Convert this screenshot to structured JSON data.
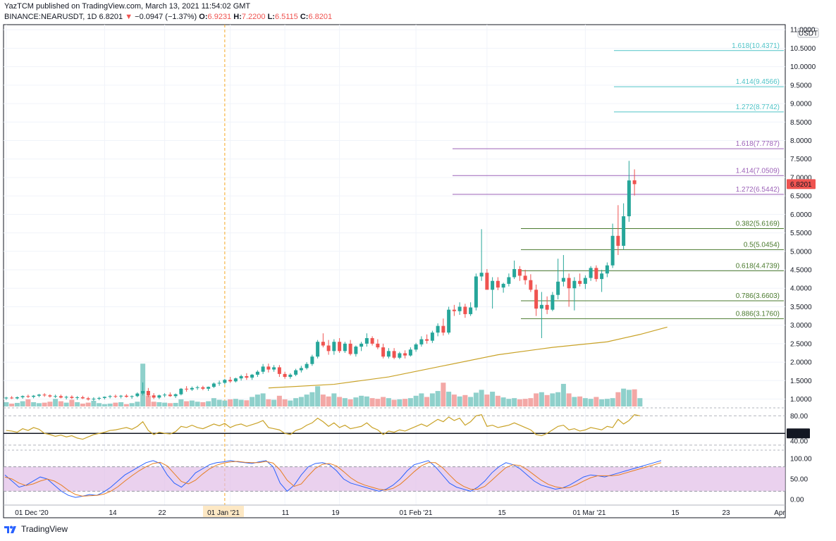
{
  "header": {
    "line1": "YazTCM published on TradingView.com, March 13, 2021 11:54:02 GMT",
    "symbol": "BINANCE:NEARUSDT, 1D",
    "price": "6.8201",
    "change": "−0.0947 (−1.37%)",
    "o_label": "O:",
    "o": "6.9231",
    "h_label": "H:",
    "h": "7.2200",
    "l_label": "L:",
    "l": "6.5115",
    "c_label": "C:",
    "c": "6.8201"
  },
  "footer": {
    "brand": "TradingView"
  },
  "colors": {
    "up": "#26a69a",
    "down": "#ef5350",
    "vol_up": "#8fd0cb",
    "vol_down": "#f3a8a6",
    "ma": "#c9a227",
    "fib_ext_cyan": "#4fc3c7",
    "fib_ext_purple": "#9c62b8",
    "fib_ret": "#4a7a2e",
    "rsi_line": "#c9a227",
    "stoch_k": "#2962ff",
    "stoch_d": "#e67e22",
    "stoch_band": "#e1bee7"
  },
  "chart_data": {
    "type": "candlestick",
    "currency": "USDT",
    "last_price_label": "6.8201",
    "y_axis_ticks": [
      "11.0000",
      "10.5000",
      "10.0000",
      "9.5000",
      "9.0000",
      "8.5000",
      "8.0000",
      "7.5000",
      "7.0000",
      "6.5000",
      "6.0000",
      "5.5000",
      "5.0000",
      "4.5000",
      "4.0000",
      "3.5000",
      "3.0000",
      "2.5000",
      "2.0000",
      "1.5000",
      "1.0000"
    ],
    "ylim": [
      0.8,
      11.1
    ],
    "x_axis_labels": [
      "01 Dec '20",
      "14",
      "22",
      "01 Jan '21",
      "11",
      "19",
      "01 Feb '21",
      "15",
      "01 Mar '21",
      "15",
      "23",
      "Apr"
    ],
    "x_axis_highlight": "01 Jan '21",
    "candles": [
      [
        1.02,
        1.06,
        0.98,
        1.04
      ],
      [
        1.04,
        1.08,
        1.0,
        1.02
      ],
      [
        1.02,
        1.07,
        0.99,
        1.05
      ],
      [
        1.05,
        1.1,
        1.01,
        1.08
      ],
      [
        1.08,
        1.12,
        1.03,
        1.06
      ],
      [
        1.06,
        1.11,
        1.02,
        1.09
      ],
      [
        1.09,
        1.14,
        1.05,
        1.12
      ],
      [
        1.12,
        1.16,
        1.06,
        1.1
      ],
      [
        1.1,
        1.13,
        1.04,
        1.07
      ],
      [
        1.07,
        1.12,
        1.03,
        1.08
      ],
      [
        1.08,
        1.12,
        1.02,
        1.04
      ],
      [
        1.04,
        1.09,
        0.99,
        1.06
      ],
      [
        1.06,
        1.1,
        1.0,
        1.03
      ],
      [
        1.03,
        1.08,
        0.98,
        1.05
      ],
      [
        1.05,
        1.09,
        1.0,
        1.02
      ],
      [
        1.02,
        1.06,
        0.96,
        0.99
      ],
      [
        0.99,
        1.05,
        0.95,
        1.01
      ],
      [
        1.01,
        1.06,
        0.97,
        1.03
      ],
      [
        1.03,
        1.07,
        0.99,
        1.06
      ],
      [
        1.06,
        1.11,
        1.02,
        1.08
      ],
      [
        1.08,
        1.12,
        1.03,
        1.07
      ],
      [
        1.07,
        1.11,
        1.02,
        1.09
      ],
      [
        1.09,
        1.13,
        1.04,
        1.06
      ],
      [
        1.06,
        1.1,
        1.01,
        1.08
      ],
      [
        1.08,
        1.18,
        1.05,
        1.15
      ],
      [
        1.15,
        1.45,
        1.1,
        1.22
      ],
      [
        1.22,
        1.3,
        1.05,
        1.1
      ],
      [
        1.1,
        1.16,
        1.0,
        1.04
      ],
      [
        1.04,
        1.12,
        1.0,
        1.1
      ],
      [
        1.1,
        1.16,
        1.05,
        1.12
      ],
      [
        1.12,
        1.18,
        1.06,
        1.08
      ],
      [
        1.08,
        1.15,
        1.03,
        1.13
      ],
      [
        1.13,
        1.3,
        1.1,
        1.28
      ],
      [
        1.28,
        1.35,
        1.2,
        1.26
      ],
      [
        1.26,
        1.34,
        1.22,
        1.3
      ],
      [
        1.3,
        1.36,
        1.25,
        1.32
      ],
      [
        1.32,
        1.36,
        1.24,
        1.28
      ],
      [
        1.28,
        1.34,
        1.22,
        1.33
      ],
      [
        1.33,
        1.45,
        1.3,
        1.42
      ],
      [
        1.42,
        1.5,
        1.36,
        1.44
      ],
      [
        1.44,
        1.55,
        1.4,
        1.52
      ],
      [
        1.52,
        1.6,
        1.44,
        1.48
      ],
      [
        1.48,
        1.58,
        1.45,
        1.56
      ],
      [
        1.56,
        1.66,
        1.5,
        1.62
      ],
      [
        1.62,
        1.7,
        1.52,
        1.58
      ],
      [
        1.58,
        1.68,
        1.52,
        1.66
      ],
      [
        1.66,
        1.78,
        1.6,
        1.74
      ],
      [
        1.74,
        1.95,
        1.68,
        1.88
      ],
      [
        1.88,
        1.96,
        1.72,
        1.8
      ],
      [
        1.8,
        1.92,
        1.74,
        1.86
      ],
      [
        1.86,
        1.92,
        1.6,
        1.68
      ],
      [
        1.68,
        1.74,
        1.55,
        1.6
      ],
      [
        1.6,
        1.7,
        1.55,
        1.66
      ],
      [
        1.66,
        1.82,
        1.62,
        1.78
      ],
      [
        1.78,
        1.9,
        1.72,
        1.84
      ],
      [
        1.84,
        2.0,
        1.8,
        1.95
      ],
      [
        1.95,
        2.2,
        1.9,
        2.15
      ],
      [
        2.15,
        2.6,
        2.1,
        2.55
      ],
      [
        2.55,
        2.78,
        2.4,
        2.45
      ],
      [
        2.45,
        2.6,
        2.2,
        2.3
      ],
      [
        2.3,
        2.62,
        2.2,
        2.55
      ],
      [
        2.55,
        2.65,
        2.25,
        2.3
      ],
      [
        2.3,
        2.55,
        2.25,
        2.5
      ],
      [
        2.5,
        2.6,
        2.18,
        2.22
      ],
      [
        2.22,
        2.45,
        2.15,
        2.42
      ],
      [
        2.42,
        2.55,
        2.3,
        2.5
      ],
      [
        2.5,
        2.78,
        2.42,
        2.65
      ],
      [
        2.65,
        2.7,
        2.45,
        2.5
      ],
      [
        2.5,
        2.62,
        2.35,
        2.4
      ],
      [
        2.4,
        2.5,
        2.1,
        2.15
      ],
      [
        2.15,
        2.38,
        2.1,
        2.3
      ],
      [
        2.3,
        2.38,
        2.08,
        2.12
      ],
      [
        2.12,
        2.28,
        2.08,
        2.24
      ],
      [
        2.24,
        2.32,
        2.1,
        2.18
      ],
      [
        2.18,
        2.4,
        2.15,
        2.34
      ],
      [
        2.34,
        2.52,
        2.28,
        2.48
      ],
      [
        2.48,
        2.7,
        2.42,
        2.62
      ],
      [
        2.62,
        2.75,
        2.5,
        2.58
      ],
      [
        2.58,
        2.85,
        2.52,
        2.8
      ],
      [
        2.8,
        3.05,
        2.7,
        2.98
      ],
      [
        2.98,
        3.18,
        2.72,
        2.8
      ],
      [
        2.8,
        3.5,
        2.75,
        3.42
      ],
      [
        3.42,
        3.55,
        3.25,
        3.38
      ],
      [
        3.38,
        3.62,
        3.28,
        3.5
      ],
      [
        3.5,
        3.58,
        3.2,
        3.3
      ],
      [
        3.3,
        3.62,
        3.25,
        3.48
      ],
      [
        3.48,
        4.4,
        3.4,
        4.32
      ],
      [
        4.32,
        5.6,
        4.2,
        4.42
      ],
      [
        4.42,
        4.52,
        4.0,
        3.96
      ],
      [
        3.96,
        4.3,
        3.45,
        4.2
      ],
      [
        4.2,
        4.3,
        3.95,
        4.02
      ],
      [
        4.02,
        4.15,
        3.88,
        4.12
      ],
      [
        4.12,
        4.4,
        4.05,
        4.3
      ],
      [
        4.3,
        4.75,
        4.25,
        4.52
      ],
      [
        4.52,
        4.6,
        4.2,
        4.34
      ],
      [
        4.34,
        4.5,
        4.1,
        4.22
      ],
      [
        4.22,
        4.38,
        3.9,
        3.96
      ],
      [
        3.96,
        4.1,
        3.25,
        3.45
      ],
      [
        3.45,
        3.9,
        2.65,
        3.55
      ],
      [
        3.55,
        3.78,
        3.3,
        3.42
      ],
      [
        3.42,
        3.9,
        3.38,
        3.82
      ],
      [
        3.82,
        4.8,
        3.7,
        4.18
      ],
      [
        4.18,
        4.9,
        4.05,
        4.28
      ],
      [
        4.28,
        4.4,
        3.5,
        4.0
      ],
      [
        4.0,
        4.3,
        3.4,
        4.2
      ],
      [
        4.2,
        4.4,
        4.05,
        4.12
      ],
      [
        4.12,
        4.35,
        3.98,
        4.28
      ],
      [
        4.28,
        4.6,
        4.2,
        4.55
      ],
      [
        4.55,
        4.62,
        4.18,
        4.25
      ],
      [
        4.25,
        4.5,
        3.9,
        4.4
      ],
      [
        4.4,
        4.7,
        4.3,
        4.62
      ],
      [
        4.62,
        5.75,
        4.55,
        5.42
      ],
      [
        5.42,
        6.25,
        4.9,
        5.15
      ],
      [
        5.15,
        6.3,
        5.05,
        5.95
      ],
      [
        5.95,
        7.45,
        5.8,
        6.92
      ],
      [
        6.9231,
        7.22,
        6.5115,
        6.8201
      ]
    ],
    "volume": [
      0.18,
      0.12,
      0.15,
      0.22,
      0.3,
      0.18,
      0.14,
      0.16,
      0.2,
      0.32,
      0.22,
      0.16,
      0.28,
      0.18,
      0.12,
      0.16,
      0.24,
      0.14,
      0.1,
      0.12,
      0.16,
      0.18,
      0.1,
      0.14,
      0.2,
      1.8,
      0.45,
      0.2,
      0.18,
      0.16,
      0.14,
      0.15,
      0.3,
      0.22,
      0.25,
      0.2,
      0.18,
      0.22,
      0.35,
      0.28,
      0.25,
      0.3,
      0.32,
      0.28,
      0.26,
      0.4,
      0.5,
      0.55,
      0.3,
      0.28,
      0.45,
      0.3,
      0.25,
      0.35,
      0.4,
      0.5,
      0.6,
      0.85,
      0.5,
      0.42,
      0.55,
      0.4,
      0.35,
      0.3,
      0.38,
      0.45,
      0.42,
      0.35,
      0.32,
      0.4,
      0.35,
      0.28,
      0.3,
      0.32,
      0.35,
      0.45,
      0.55,
      0.4,
      0.55,
      0.65,
      1.0,
      0.62,
      0.5,
      0.42,
      0.48,
      0.4,
      0.58,
      0.7,
      0.5,
      0.62,
      0.45,
      0.38,
      0.32,
      0.35,
      0.3,
      0.32,
      0.35,
      0.55,
      0.6,
      0.48,
      0.55,
      0.6,
      0.95,
      0.55,
      0.4,
      0.42,
      0.35,
      0.32,
      0.4,
      0.3,
      0.32,
      0.35,
      0.6,
      0.75,
      0.7,
      0.72,
      0.35
    ],
    "ma_line": [
      [
        48,
        1.3
      ],
      [
        60,
        1.4
      ],
      [
        70,
        1.6
      ],
      [
        80,
        1.9
      ],
      [
        90,
        2.2
      ],
      [
        100,
        2.4
      ],
      [
        110,
        2.55
      ],
      [
        116,
        2.75
      ],
      [
        121,
        2.95
      ]
    ],
    "fib_levels": [
      {
        "label": "1.618(10.4371)",
        "value": 10.4371,
        "group": "ext_cyan"
      },
      {
        "label": "1.414(9.4566)",
        "value": 9.4566,
        "group": "ext_cyan"
      },
      {
        "label": "1.272(8.7742)",
        "value": 8.7742,
        "group": "ext_cyan"
      },
      {
        "label": "1.618(7.7787)",
        "value": 7.7787,
        "group": "ext_purple"
      },
      {
        "label": "1.414(7.0509)",
        "value": 7.0509,
        "group": "ext_purple"
      },
      {
        "label": "1.272(6.5442)",
        "value": 6.5442,
        "group": "ext_purple"
      },
      {
        "label": "0.382(5.6169)",
        "value": 5.6169,
        "group": "ret"
      },
      {
        "label": "0.5(5.0454)",
        "value": 5.0454,
        "group": "ret"
      },
      {
        "label": "0.618(4.4739)",
        "value": 4.4739,
        "group": "ret"
      },
      {
        "label": "0.786(3.6603)",
        "value": 3.6603,
        "group": "ret"
      },
      {
        "label": "0.886(3.1760)",
        "value": 3.176,
        "group": "ret"
      }
    ],
    "rsi": {
      "ticks": [
        "80.00",
        "40.00"
      ],
      "level_label": "50.00",
      "values": [
        55,
        54,
        52,
        58,
        55,
        60,
        57,
        50,
        48,
        45,
        47,
        44,
        46,
        42,
        40,
        44,
        48,
        50,
        52,
        55,
        56,
        58,
        60,
        57,
        62,
        70,
        55,
        48,
        52,
        50,
        49,
        53,
        62,
        60,
        64,
        60,
        58,
        62,
        66,
        63,
        67,
        60,
        64,
        66,
        62,
        65,
        68,
        72,
        60,
        58,
        56,
        50,
        48,
        55,
        58,
        64,
        68,
        76,
        70,
        62,
        68,
        60,
        64,
        58,
        60,
        62,
        68,
        60,
        56,
        48,
        54,
        52,
        56,
        54,
        58,
        62,
        66,
        62,
        68,
        74,
        70,
        78,
        72,
        76,
        64,
        70,
        80,
        82,
        62,
        64,
        60,
        62,
        64,
        68,
        64,
        60,
        56,
        48,
        46,
        50,
        56,
        62,
        64,
        56,
        58,
        54,
        56,
        60,
        58,
        56,
        62,
        60,
        74,
        66,
        72,
        82,
        80
      ]
    },
    "stoch_rsi": {
      "ticks": [
        "100.00",
        "50.00",
        "0.00"
      ],
      "k": [
        60,
        45,
        30,
        35,
        45,
        55,
        50,
        35,
        20,
        10,
        5,
        8,
        12,
        10,
        18,
        30,
        45,
        60,
        70,
        80,
        90,
        95,
        88,
        60,
        40,
        30,
        45,
        65,
        75,
        85,
        90,
        92,
        95,
        92,
        90,
        88,
        92,
        95,
        80,
        40,
        20,
        35,
        60,
        80,
        88,
        90,
        85,
        70,
        50,
        40,
        35,
        30,
        25,
        20,
        25,
        35,
        50,
        70,
        85,
        90,
        95,
        80,
        60,
        40,
        30,
        25,
        20,
        30,
        45,
        65,
        80,
        90,
        85,
        75,
        60,
        45,
        35,
        30,
        25,
        28,
        35,
        45,
        55,
        60,
        58,
        55,
        60,
        65,
        70,
        75,
        80,
        85,
        90,
        95
      ]
    },
    "stoch_d": [
      55,
      50,
      40,
      34,
      38,
      45,
      50,
      45,
      35,
      22,
      12,
      8,
      9,
      10,
      13,
      20,
      31,
      45,
      58,
      70,
      80,
      88,
      91,
      82,
      63,
      44,
      38,
      47,
      62,
      75,
      84,
      89,
      92,
      93,
      91,
      90,
      90,
      93,
      89,
      72,
      47,
      32,
      38,
      58,
      76,
      86,
      88,
      82,
      68,
      53,
      42,
      35,
      30,
      25,
      23,
      27,
      37,
      52,
      68,
      82,
      90,
      90,
      78,
      60,
      43,
      32,
      25,
      25,
      32,
      47,
      63,
      78,
      85,
      83,
      73,
      60,
      47,
      37,
      31,
      28,
      29,
      36,
      45,
      53,
      58,
      58,
      58,
      60,
      65,
      70,
      75,
      80,
      85,
      90
    ]
  }
}
